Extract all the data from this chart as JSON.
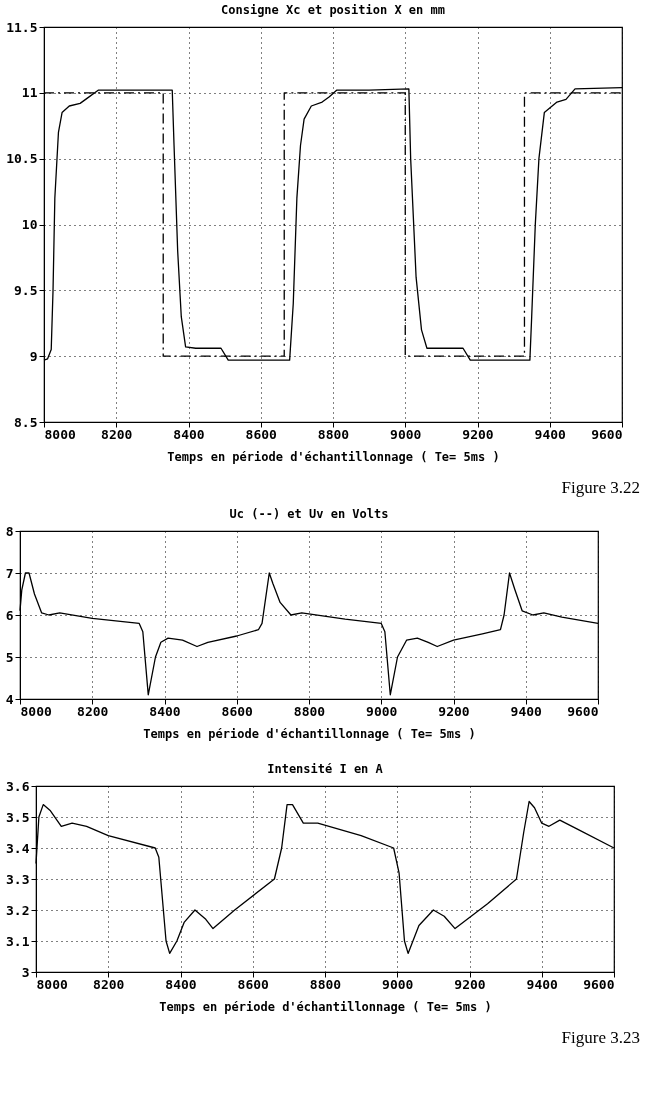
{
  "chart_data": [
    {
      "type": "line",
      "title": "Consigne Xc et position X en mm",
      "xlabel": "Temps en période d'échantillonnage ( Te=  5ms )",
      "annotations": [
        "Figure  3.22"
      ],
      "xlim": [
        8000,
        9600
      ],
      "xticks": [
        8000,
        8200,
        8400,
        8600,
        8800,
        9000,
        9200,
        9400,
        9600
      ],
      "ylim": [
        8.5,
        11.5
      ],
      "yticks": [
        8.5,
        9,
        9.5,
        10,
        10.5,
        11,
        11.5
      ],
      "grid": true,
      "series": [
        {
          "color": "#000000",
          "line_style": "dashed",
          "x": [
            8000,
            8330,
            8330,
            8665,
            8665,
            9000,
            9000,
            9330,
            9330,
            9600
          ],
          "values": [
            11,
            11,
            9,
            9,
            11,
            11,
            9,
            9,
            11,
            11
          ]
        },
        {
          "color": "#000000",
          "line_style": "solid",
          "x": [
            8000,
            8010,
            8020,
            8025,
            8030,
            8040,
            8050,
            8070,
            8100,
            8120,
            8150,
            8200,
            8300,
            8355,
            8360,
            8370,
            8380,
            8392,
            8420,
            8490,
            8510,
            8600,
            8680,
            8690,
            8700,
            8710,
            8720,
            8740,
            8770,
            8790,
            8810,
            8900,
            9010,
            9015,
            9030,
            9045,
            9060,
            9100,
            9160,
            9180,
            9250,
            9345,
            9350,
            9360,
            9370,
            9385,
            9420,
            9445,
            9470,
            9600
          ],
          "values": [
            8.97,
            8.98,
            9.05,
            9.5,
            10.2,
            10.7,
            10.85,
            10.9,
            10.92,
            10.96,
            11.02,
            11.02,
            11.02,
            11.02,
            10.6,
            9.8,
            9.3,
            9.07,
            9.06,
            9.06,
            8.97,
            8.97,
            8.97,
            9.4,
            10.2,
            10.6,
            10.8,
            10.9,
            10.93,
            10.97,
            11.02,
            11.02,
            11.03,
            10.5,
            9.6,
            9.2,
            9.06,
            9.06,
            9.06,
            8.97,
            8.97,
            8.97,
            9.3,
            10.0,
            10.5,
            10.85,
            10.93,
            10.95,
            11.03,
            11.04
          ]
        }
      ]
    },
    {
      "type": "line",
      "title": "Uc (--) et Uv en Volts",
      "xlabel": "Temps en période d'échantillonnage ( Te=  5ms )",
      "xlim": [
        8000,
        9600
      ],
      "xticks": [
        8000,
        8200,
        8400,
        8600,
        8800,
        9000,
        9200,
        9400,
        9600
      ],
      "ylim": [
        4,
        8
      ],
      "yticks": [
        4,
        5,
        6,
        7,
        8
      ],
      "grid": true,
      "series": [
        {
          "color": "#000000",
          "line_style": "solid",
          "x": [
            8000,
            8005,
            8015,
            8025,
            8040,
            8060,
            8080,
            8110,
            8200,
            8330,
            8340,
            8355,
            8375,
            8390,
            8410,
            8450,
            8490,
            8520,
            8600,
            8660,
            8670,
            8690,
            8700,
            8720,
            8750,
            8780,
            8900,
            9000,
            9010,
            9025,
            9045,
            9070,
            9100,
            9130,
            9155,
            9200,
            9280,
            9330,
            9340,
            9355,
            9370,
            9390,
            9420,
            9450,
            9500,
            9600
          ],
          "values": [
            6.1,
            6.6,
            7.0,
            7.0,
            6.5,
            6.05,
            6.0,
            6.05,
            5.92,
            5.8,
            5.6,
            4.1,
            5.0,
            5.35,
            5.45,
            5.4,
            5.25,
            5.35,
            5.5,
            5.65,
            5.8,
            7.0,
            6.75,
            6.3,
            6.0,
            6.05,
            5.9,
            5.8,
            5.6,
            4.1,
            5.0,
            5.4,
            5.45,
            5.35,
            5.25,
            5.4,
            5.55,
            5.65,
            6.0,
            7.0,
            6.6,
            6.1,
            6.0,
            6.05,
            5.95,
            5.8
          ]
        }
      ]
    },
    {
      "type": "line",
      "title": "Intensité I en A",
      "xlabel": "Temps en période d'échantillonnage ( Te=  5ms )",
      "annotations": [
        "Figure  3.23"
      ],
      "xlim": [
        8000,
        9600
      ],
      "xticks": [
        8000,
        8200,
        8400,
        8600,
        8800,
        9000,
        9200,
        9400,
        9600
      ],
      "ylim": [
        3,
        3.6
      ],
      "yticks": [
        3,
        3.1,
        3.2,
        3.3,
        3.4,
        3.5,
        3.6
      ],
      "grid": true,
      "series": [
        {
          "color": "#000000",
          "line_style": "solid",
          "x": [
            8000,
            8008,
            8020,
            8040,
            8070,
            8100,
            8140,
            8200,
            8330,
            8340,
            8360,
            8370,
            8390,
            8410,
            8440,
            8470,
            8490,
            8550,
            8660,
            8680,
            8695,
            8710,
            8740,
            8780,
            8900,
            8990,
            9005,
            9020,
            9030,
            9060,
            9100,
            9130,
            9160,
            9250,
            9330,
            9350,
            9365,
            9380,
            9400,
            9420,
            9450,
            9500,
            9600
          ],
          "values": [
            3.35,
            3.5,
            3.54,
            3.52,
            3.47,
            3.48,
            3.47,
            3.44,
            3.4,
            3.37,
            3.1,
            3.06,
            3.1,
            3.16,
            3.2,
            3.17,
            3.14,
            3.2,
            3.3,
            3.4,
            3.54,
            3.54,
            3.48,
            3.48,
            3.44,
            3.4,
            3.32,
            3.1,
            3.06,
            3.15,
            3.2,
            3.18,
            3.14,
            3.22,
            3.3,
            3.45,
            3.55,
            3.53,
            3.48,
            3.47,
            3.49,
            3.46,
            3.4
          ]
        }
      ]
    }
  ]
}
